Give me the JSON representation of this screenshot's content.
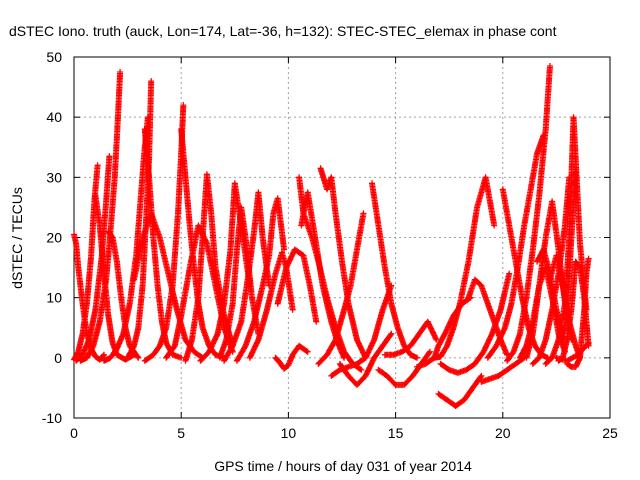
{
  "chart_data": {
    "type": "scatter",
    "title": "dSTEC Iono. truth (auck, Lon=174, Lat=-36, h=132): STEC-STEC_elemax in phase cont",
    "xlabel": "GPS time / hours of day 031 of year 2014",
    "ylabel": "dSTEC  / TECUs",
    "xlim": [
      0,
      25
    ],
    "ylim": [
      -10,
      50
    ],
    "xticks": [
      "0",
      "5",
      "10",
      "15",
      "20",
      "25"
    ],
    "yticks": [
      "-10",
      "0",
      "10",
      "20",
      "30",
      "40",
      "50"
    ],
    "grid": true,
    "legend": "none",
    "marker": "plus",
    "series_color": "#ff0000",
    "series": [
      {
        "x": [
          0.0,
          0.1,
          0.2,
          0.4,
          0.6,
          0.8,
          1.0,
          1.2,
          1.4
        ],
        "y": [
          20.5,
          19,
          15,
          9,
          4,
          1.5,
          0.2,
          -0.3,
          0.5
        ]
      },
      {
        "x": [
          0.0,
          0.2,
          0.4,
          0.6,
          0.8,
          0.95,
          1.1
        ],
        "y": [
          -0.3,
          1,
          4,
          9,
          17,
          26,
          32
        ]
      },
      {
        "x": [
          0.1,
          0.4,
          0.7,
          1.0,
          1.3,
          1.5,
          1.65
        ],
        "y": [
          -0.5,
          0.5,
          3,
          8,
          17,
          26,
          33.5
        ]
      },
      {
        "x": [
          0.3,
          0.6,
          0.9,
          1.2,
          1.5,
          1.7,
          1.9,
          2.05,
          2.15
        ],
        "y": [
          -0.5,
          0,
          2,
          6,
          13,
          21,
          30,
          40,
          47.5
        ]
      },
      {
        "x": [
          1.0,
          1.2,
          1.4,
          1.6,
          1.8,
          2.0,
          2.4,
          2.8
        ],
        "y": [
          27,
          22,
          14,
          7,
          2.5,
          0.5,
          -0.3,
          0.5
        ]
      },
      {
        "x": [
          1.6,
          1.8,
          2.0,
          2.2,
          2.4,
          2.6,
          3.0
        ],
        "y": [
          21,
          20,
          16,
          10,
          5,
          2,
          0
        ]
      },
      {
        "x": [
          1.4,
          1.7,
          2.0,
          2.3,
          2.6,
          2.9,
          3.1,
          3.3,
          3.45
        ],
        "y": [
          -0.5,
          0,
          1.5,
          4,
          9,
          17,
          26,
          35,
          40
        ]
      },
      {
        "x": [
          2.5,
          2.8,
          3.0,
          3.2,
          3.35,
          3.5,
          3.6
        ],
        "y": [
          0,
          2,
          5,
          12,
          22,
          33,
          46
        ]
      },
      {
        "x": [
          3.3,
          3.5,
          3.7,
          3.9,
          4.1,
          4.3,
          4.6,
          5.0
        ],
        "y": [
          38,
          30,
          20,
          12,
          6,
          2.5,
          0.5,
          0
        ]
      },
      {
        "x": [
          2.8,
          3.2,
          3.6,
          4.0,
          4.4,
          4.8,
          5.2,
          5.6,
          6.0
        ],
        "y": [
          13,
          20,
          24,
          20,
          14,
          8,
          3,
          1,
          0
        ]
      },
      {
        "x": [
          3.3,
          3.7,
          4.0,
          4.3,
          4.6,
          4.85,
          5.0,
          5.1
        ],
        "y": [
          -0.5,
          0.5,
          2,
          5,
          12,
          24,
          34,
          42
        ]
      },
      {
        "x": [
          5.0,
          5.2,
          5.4,
          5.6,
          5.8,
          6.0,
          6.3,
          6.6,
          7.0
        ],
        "y": [
          38,
          30,
          22,
          15,
          9,
          5,
          2,
          0.5,
          0
        ]
      },
      {
        "x": [
          4.3,
          4.7,
          5.0,
          5.4,
          5.8,
          6.2,
          6.6,
          7.0,
          7.4
        ],
        "y": [
          0,
          2,
          7,
          15,
          22,
          19,
          12,
          5,
          1
        ]
      },
      {
        "x": [
          5.2,
          5.5,
          5.8,
          6.0,
          6.2,
          6.4,
          6.6,
          7.0,
          7.4
        ],
        "y": [
          -0.5,
          3,
          10,
          20,
          30.5,
          24,
          15,
          7,
          2
        ]
      },
      {
        "x": [
          5.9,
          6.3,
          6.7,
          7.0,
          7.3,
          7.5,
          7.8,
          8.2
        ],
        "y": [
          -0.5,
          1,
          4,
          9,
          18,
          29,
          22,
          12
        ]
      },
      {
        "x": [
          6.8,
          7.1,
          7.4,
          7.6,
          7.8,
          8.0,
          8.3,
          8.6
        ],
        "y": [
          0,
          3,
          9,
          18,
          25,
          20,
          10,
          4
        ]
      },
      {
        "x": [
          7.0,
          7.4,
          7.8,
          8.1,
          8.4,
          8.6,
          8.8,
          9.1
        ],
        "y": [
          -0.5,
          2,
          6,
          13,
          21,
          27.5,
          20,
          12
        ]
      },
      {
        "x": [
          7.6,
          8.0,
          8.4,
          8.8,
          9.1,
          9.3,
          9.5,
          9.8
        ],
        "y": [
          -0.5,
          2,
          6,
          12,
          17,
          24,
          26.5,
          18
        ]
      },
      {
        "x": [
          8.2,
          8.6,
          9.0,
          9.4,
          9.7,
          9.9,
          10.2
        ],
        "y": [
          0,
          3,
          8,
          14,
          17.5,
          15,
          8
        ]
      },
      {
        "x": [
          9.4,
          9.6,
          9.8,
          10.0,
          10.2,
          10.5,
          10.9
        ],
        "y": [
          0,
          -0.8,
          -1.8,
          -1.2,
          0.5,
          2,
          1
        ]
      },
      {
        "x": [
          10.5,
          10.7,
          10.9,
          11.1,
          11.4,
          11.8,
          12.2,
          12.6,
          13.0,
          13.4
        ],
        "y": [
          30,
          24,
          22,
          20,
          16,
          10,
          5,
          1,
          -1,
          -2
        ]
      },
      {
        "x": [
          9.5,
          9.9,
          10.3,
          10.7,
          11.0,
          11.3
        ],
        "y": [
          9,
          15,
          18,
          17,
          12,
          6
        ]
      },
      {
        "x": [
          10.6,
          10.9,
          11.2,
          11.6,
          12.0,
          12.3,
          12.6
        ],
        "y": [
          22,
          27.5,
          21,
          12,
          6,
          2.5,
          0
        ]
      },
      {
        "x": [
          11.5,
          11.8,
          12.0,
          12.2,
          12.5,
          12.8,
          13.2,
          13.6
        ],
        "y": [
          31.5,
          28,
          30,
          24,
          16,
          9,
          3,
          0
        ]
      },
      {
        "x": [
          11.4,
          11.8,
          12.2,
          12.6,
          12.9,
          13.2,
          13.5
        ],
        "y": [
          -1,
          0.5,
          3,
          8,
          12,
          18,
          24
        ]
      },
      {
        "x": [
          12.0,
          12.4,
          12.8,
          13.2,
          13.6,
          14.0,
          14.4,
          14.8
        ],
        "y": [
          -3,
          -2,
          -1.5,
          -1,
          0,
          3,
          8,
          12
        ]
      },
      {
        "x": [
          12.4,
          12.8,
          13.2,
          13.6,
          14.0,
          14.4,
          14.8
        ],
        "y": [
          -1,
          -3,
          -4.5,
          -3,
          0,
          2,
          4
        ]
      },
      {
        "x": [
          13.9,
          14.2,
          14.5,
          14.8,
          15.1,
          15.4,
          15.7,
          16.0
        ],
        "y": [
          29,
          22,
          15,
          9,
          5,
          2,
          0.5,
          0
        ]
      },
      {
        "x": [
          14.2,
          14.6,
          15.0,
          15.4,
          15.8,
          16.2,
          16.6
        ],
        "y": [
          -2,
          -3,
          -4.5,
          -4.5,
          -3,
          -1,
          1
        ]
      },
      {
        "x": [
          14.5,
          14.9,
          15.3,
          15.7,
          16.1,
          16.5,
          16.9
        ],
        "y": [
          0.5,
          0.5,
          1,
          2,
          4,
          6,
          3
        ]
      },
      {
        "x": [
          16.0,
          16.4,
          16.8,
          17.0,
          17.3,
          17.7,
          18.1,
          18.5
        ],
        "y": [
          -1.5,
          -1,
          0,
          2,
          4,
          7,
          9,
          10
        ]
      },
      {
        "x": [
          16.8,
          17.1,
          17.4,
          17.7,
          18.0,
          18.4,
          18.8,
          19.2,
          19.6
        ],
        "y": [
          0,
          0.2,
          2,
          5,
          9,
          16,
          25,
          30,
          22
        ]
      },
      {
        "x": [
          17.0,
          17.4,
          17.8,
          18.2,
          18.6,
          19.0
        ],
        "y": [
          -6,
          -7,
          -8,
          -7,
          -5,
          -3
        ]
      },
      {
        "x": [
          17.1,
          17.5,
          17.9,
          18.3,
          18.7,
          19.1,
          19.5,
          19.9,
          20.3
        ],
        "y": [
          -1,
          -2,
          -2.5,
          -2,
          -1,
          1,
          4,
          8,
          14
        ]
      },
      {
        "x": [
          18.4,
          18.7,
          19.0,
          19.3,
          19.6,
          19.9,
          20.2
        ],
        "y": [
          10,
          13,
          12,
          9,
          6,
          3,
          0.5
        ]
      },
      {
        "x": [
          19.0,
          19.4,
          19.8,
          20.2,
          20.6,
          21.0
        ],
        "y": [
          -4,
          -3.5,
          -3,
          -2,
          -1,
          0
        ]
      },
      {
        "x": [
          19.3,
          19.7,
          20.1,
          20.4,
          20.7,
          21.0,
          21.3,
          21.6,
          21.9
        ],
        "y": [
          0,
          2,
          5,
          9,
          15,
          22,
          28,
          34,
          37
        ]
      },
      {
        "x": [
          20.0,
          20.3,
          20.6,
          20.9,
          21.2,
          21.5,
          21.8,
          22.1
        ],
        "y": [
          28,
          22,
          16,
          10,
          5,
          2,
          0.5,
          0
        ]
      },
      {
        "x": [
          20.2,
          20.5,
          20.8,
          21.1,
          21.4,
          21.7,
          22.0,
          22.2
        ],
        "y": [
          -0.5,
          1,
          4,
          10,
          18,
          27,
          38,
          48.5
        ]
      },
      {
        "x": [
          20.8,
          21.1,
          21.4,
          21.7,
          22.0,
          22.3,
          22.6,
          22.9
        ],
        "y": [
          0,
          2,
          6,
          12,
          15,
          10,
          4,
          1
        ]
      },
      {
        "x": [
          21.1,
          21.4,
          21.7,
          22.0,
          22.3,
          22.6,
          22.9,
          23.2
        ],
        "y": [
          0,
          4,
          12,
          20,
          26,
          18,
          9,
          3
        ]
      },
      {
        "x": [
          21.4,
          21.7,
          22.0,
          22.3,
          22.6,
          22.9,
          23.1
        ],
        "y": [
          -1,
          0,
          3,
          8,
          14,
          22,
          30
        ]
      },
      {
        "x": [
          21.6,
          21.9,
          22.2,
          22.5,
          22.8,
          23.0,
          23.2,
          23.4
        ],
        "y": [
          16,
          18,
          14,
          8,
          3,
          8,
          20,
          31
        ]
      },
      {
        "x": [
          22.0,
          22.3,
          22.6,
          22.9,
          23.1,
          23.3,
          23.6,
          23.9
        ],
        "y": [
          -1,
          0,
          3,
          9,
          20,
          40,
          19,
          8
        ]
      },
      {
        "x": [
          22.2,
          22.5,
          22.8,
          23.1,
          23.4,
          23.6
        ],
        "y": [
          13,
          17,
          12,
          6,
          2,
          0
        ]
      },
      {
        "x": [
          22.6,
          22.8,
          23.0,
          23.2,
          23.4,
          23.6,
          23.8,
          24.0
        ],
        "y": [
          -0.5,
          0,
          3,
          8,
          16,
          15,
          10,
          2
        ]
      },
      {
        "x": [
          23.0,
          23.2,
          23.4,
          23.6,
          23.8,
          23.9,
          24.0
        ],
        "y": [
          -1,
          -1.5,
          -1.5,
          0,
          8,
          14,
          16.5
        ]
      },
      {
        "x": [
          22.5,
          23.0,
          23.5,
          24.0
        ],
        "y": [
          0,
          -0.5,
          0.5,
          2.5
        ]
      }
    ]
  }
}
